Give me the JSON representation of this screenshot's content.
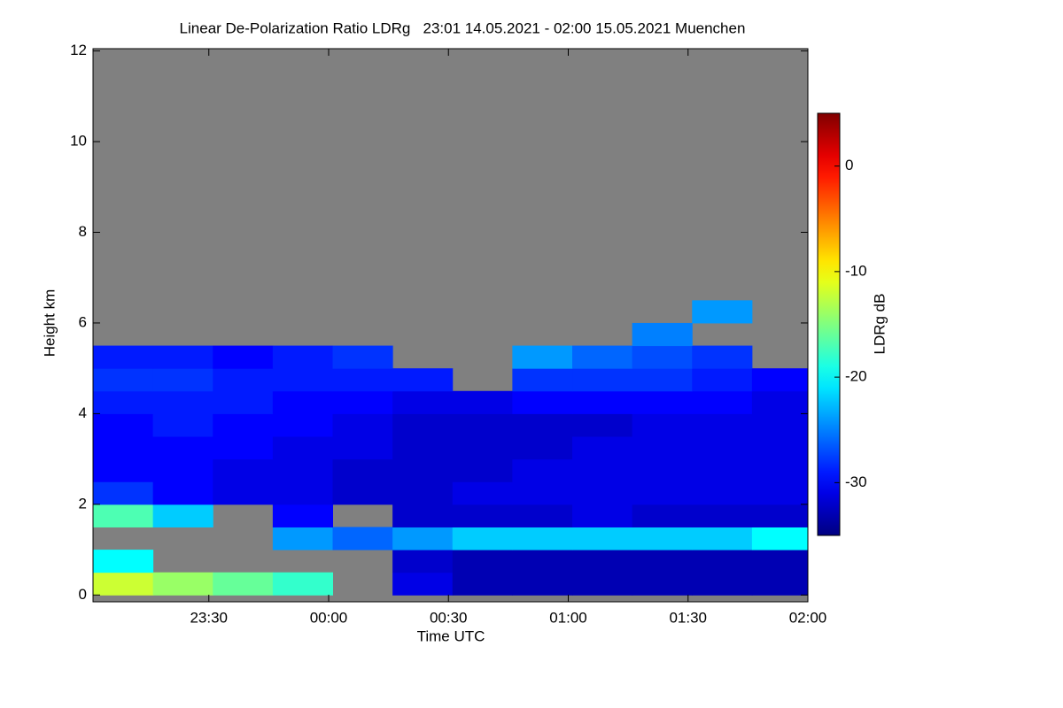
{
  "chart_data": {
    "type": "heatmap",
    "title": "Linear De-Polarization Ratio LDRg   23:01 14.05.2021 - 02:00 15.05.2021 Muenchen",
    "x_label": "Time UTC",
    "y_label": "Height km",
    "colorbar_label": "LDRg dB",
    "colormap": "jet",
    "missing_color": "#808080",
    "xlim": [
      "23:01",
      "02:00"
    ],
    "xticks": [
      "23:30",
      "00:00",
      "00:30",
      "01:00",
      "01:30",
      "02:00"
    ],
    "ylim": [
      -0.15,
      12.05
    ],
    "yticks": [
      0,
      2,
      4,
      6,
      8,
      10,
      12
    ],
    "clim": [
      -35,
      5
    ],
    "cticks": [
      0,
      -10,
      -20,
      -30
    ],
    "x_edges": [
      "23:01",
      "23:16",
      "23:31",
      "23:46",
      "00:01",
      "00:16",
      "00:31",
      "00:46",
      "01:01",
      "01:16",
      "01:31",
      "01:46",
      "02:00"
    ],
    "y_edges": [
      0,
      0.5,
      1,
      1.5,
      2,
      2.5,
      3,
      3.5,
      4,
      4.5,
      5,
      5.5,
      6,
      6.5
    ],
    "values": [
      [
        -12,
        -14,
        -16,
        -18,
        null,
        -31,
        -33,
        -33,
        -33,
        -33,
        -33,
        -33
      ],
      [
        -20,
        null,
        null,
        null,
        null,
        -32,
        -33,
        -33,
        -33,
        -33,
        -33,
        -33
      ],
      [
        null,
        null,
        null,
        -24,
        -26,
        -24,
        -22,
        -22,
        -22,
        -22,
        -22,
        -20
      ],
      [
        -17,
        -22,
        null,
        -30,
        null,
        -32,
        -32,
        -32,
        -31,
        -32,
        -32,
        -32
      ],
      [
        -28,
        -30,
        -31,
        -31,
        -32,
        -32,
        -31,
        -31,
        -31,
        -31,
        -31,
        -31
      ],
      [
        -30,
        -30,
        -31,
        -31,
        -32,
        -32,
        -32,
        -31,
        -31,
        -31,
        -31,
        -31
      ],
      [
        -30,
        -30,
        -30,
        -31,
        -31,
        -32,
        -32,
        -32,
        -31,
        -31,
        -31,
        -31
      ],
      [
        -30,
        -29,
        -30,
        -30,
        -31,
        -32,
        -32,
        -32,
        -32,
        -31,
        -31,
        -31
      ],
      [
        -29,
        -29,
        -29,
        -30,
        -30,
        -31,
        -31,
        -30,
        -30,
        -30,
        -30,
        -31
      ],
      [
        -28,
        -28,
        -29,
        -29,
        -29,
        -29,
        null,
        -28,
        -28,
        -28,
        -29,
        -30
      ],
      [
        -29,
        -29,
        -30,
        -29,
        -28,
        null,
        null,
        -24,
        -26,
        -27,
        -28,
        null
      ],
      [
        null,
        null,
        null,
        null,
        null,
        null,
        null,
        null,
        null,
        -25,
        null,
        null
      ],
      [
        null,
        null,
        null,
        null,
        null,
        null,
        null,
        null,
        null,
        null,
        -24,
        null
      ]
    ]
  }
}
